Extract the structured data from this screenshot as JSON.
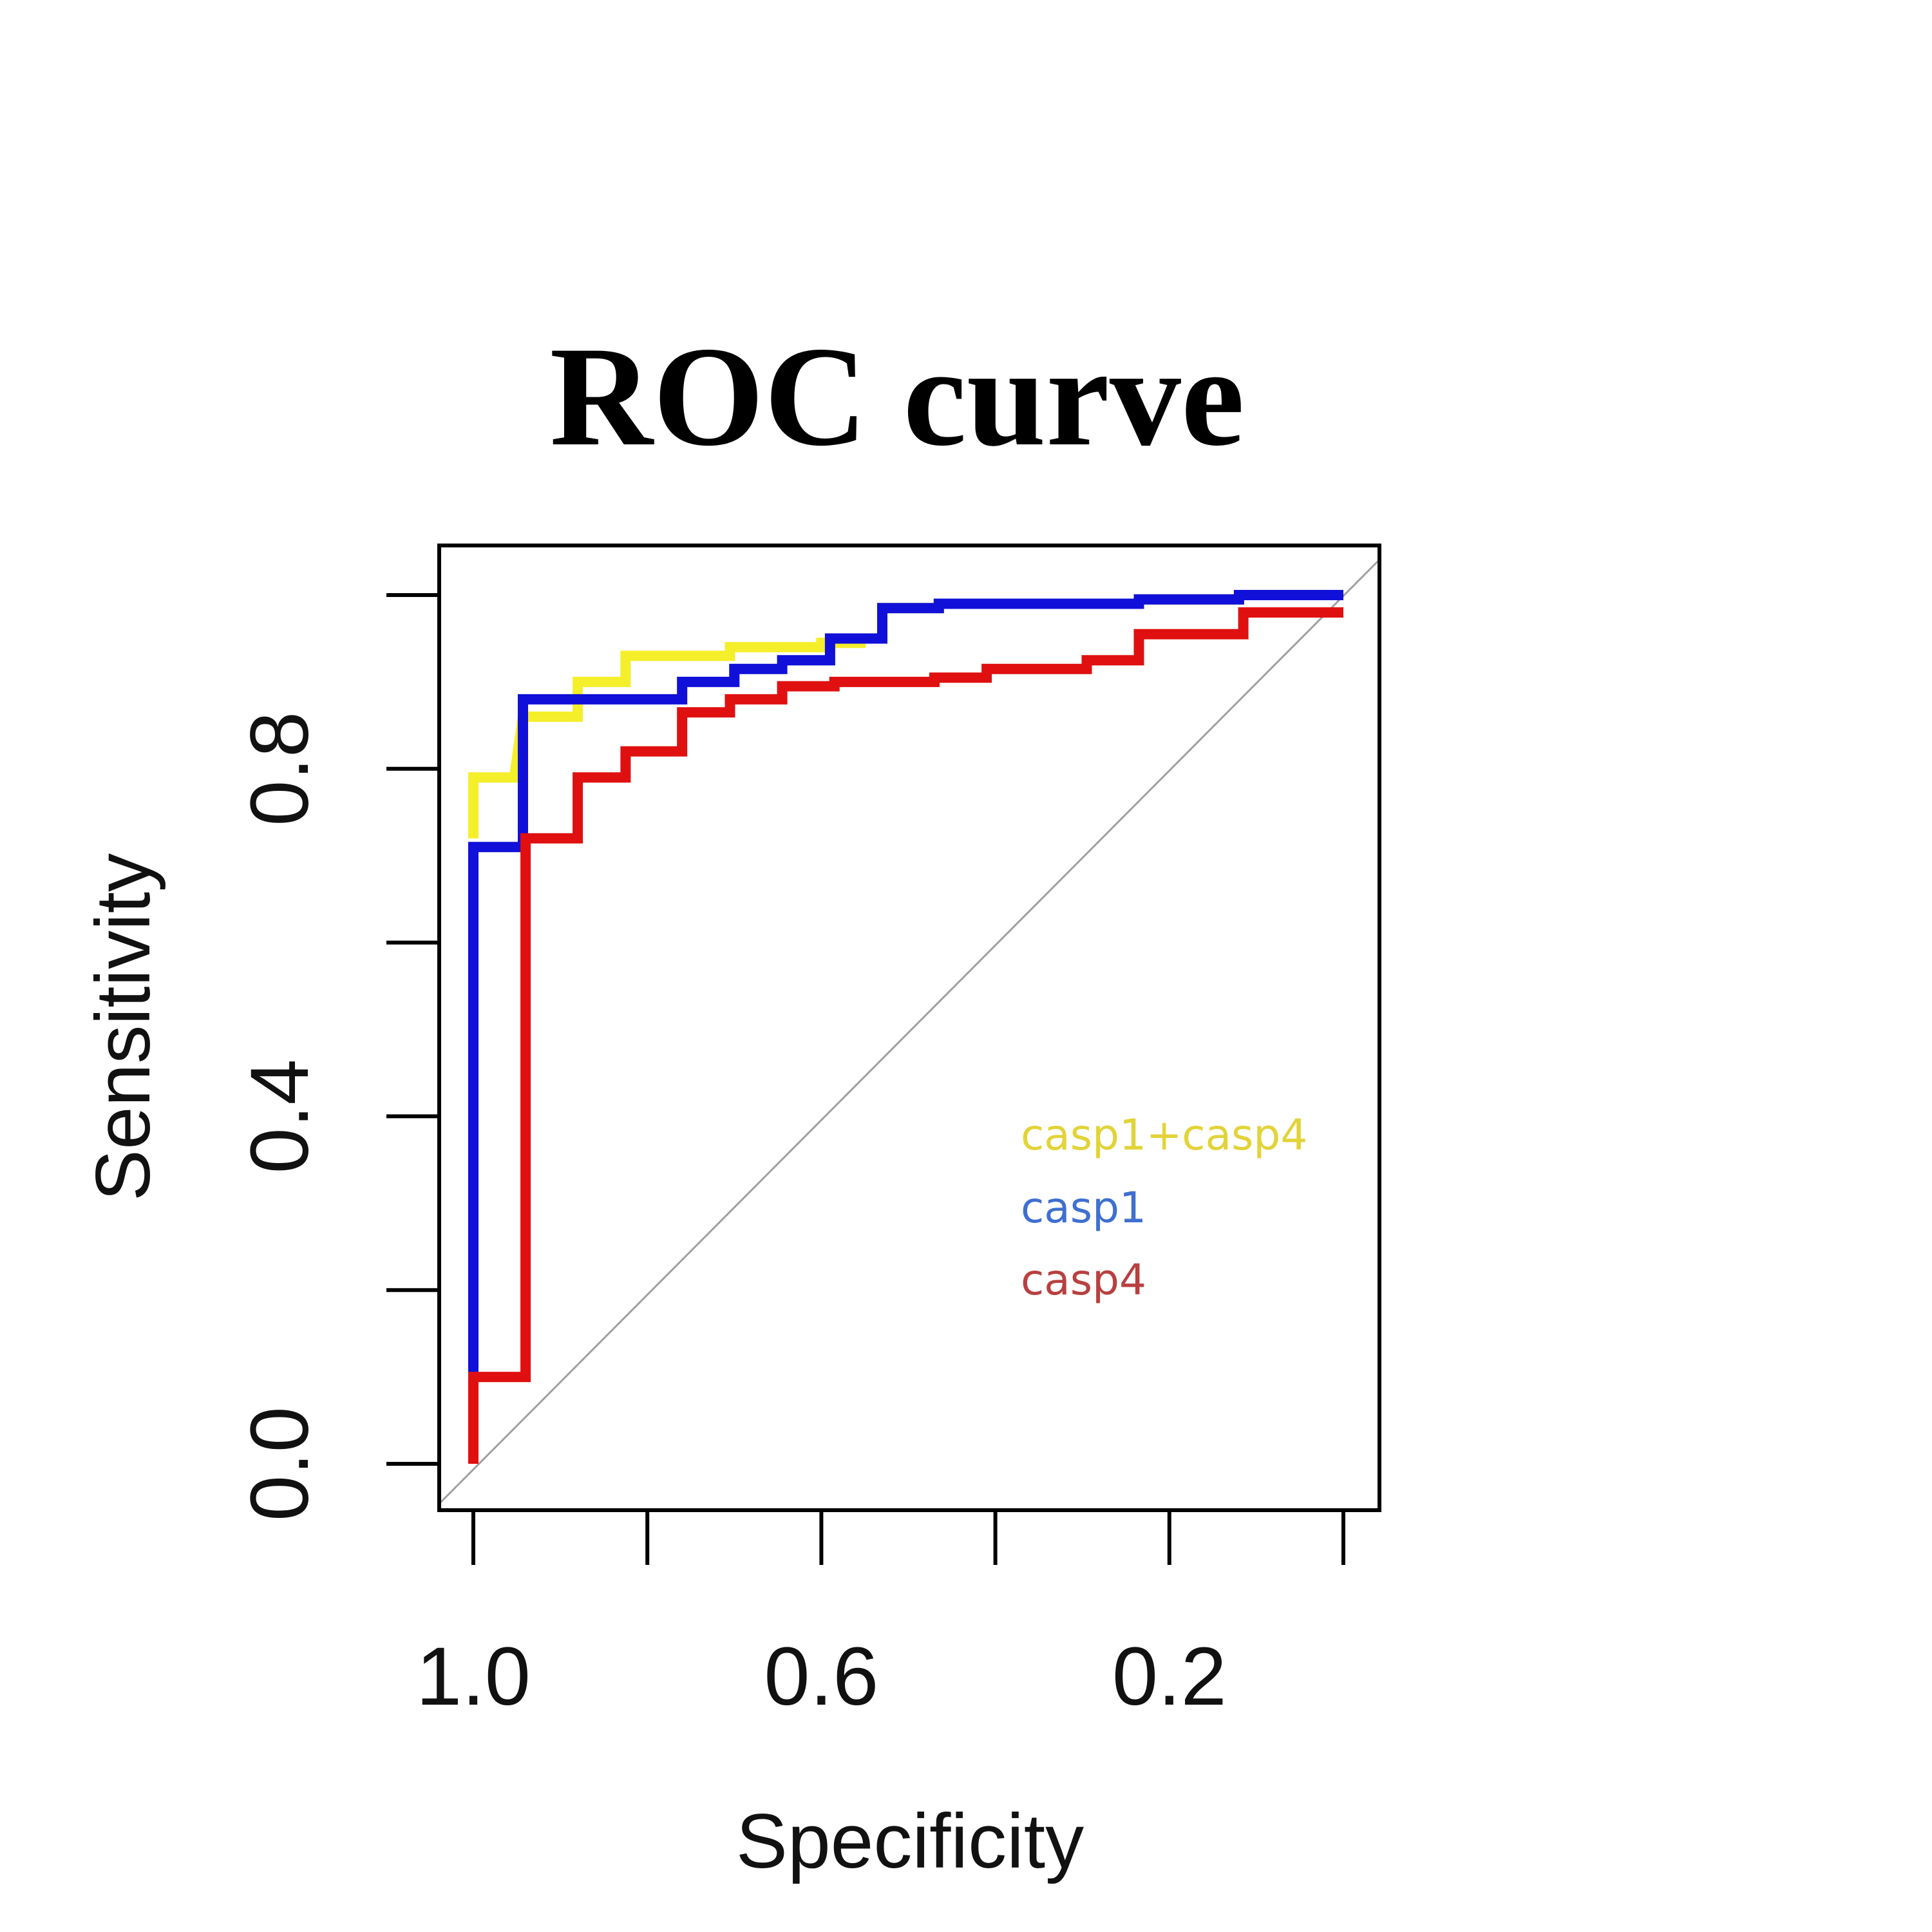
{
  "chart_data": {
    "type": "line",
    "subtype": "roc-step",
    "title": "ROC curve",
    "xlabel": "Specificity",
    "ylabel": "Sensitivity",
    "xlim": [
      1.0,
      0.0
    ],
    "ylim": [
      0.0,
      1.0
    ],
    "x_reversed": true,
    "x_ticks": [
      1.0,
      0.8,
      0.6,
      0.4,
      0.2,
      0.0
    ],
    "x_tick_labels": [
      "1.0",
      "",
      "0.6",
      "",
      "0.2",
      ""
    ],
    "y_ticks": [
      0.0,
      0.2,
      0.4,
      0.6,
      0.8,
      1.0
    ],
    "y_tick_labels": [
      "0.0",
      "",
      "0.4",
      "",
      "0.8",
      ""
    ],
    "grid": false,
    "legend_position": "bottom-right",
    "reference_line": {
      "from": [
        1.0,
        0.0
      ],
      "to": [
        0.0,
        1.0
      ],
      "color": "#a0a0a0"
    },
    "series": [
      {
        "name": "casp1+casp4",
        "color": "#f5ee2a",
        "legend_color": "#e2d338",
        "points": [
          [
            1.0,
            0.72
          ],
          [
            1.0,
            0.79
          ],
          [
            0.953,
            0.79
          ],
          [
            0.943,
            0.86
          ],
          [
            0.88,
            0.86
          ],
          [
            0.88,
            0.9
          ],
          [
            0.825,
            0.9
          ],
          [
            0.825,
            0.93
          ],
          [
            0.705,
            0.93
          ],
          [
            0.705,
            0.94
          ],
          [
            0.6,
            0.94
          ],
          [
            0.6,
            0.945
          ],
          [
            0.555,
            0.945
          ],
          [
            0.555,
            0.95
          ],
          [
            0.53,
            0.95
          ],
          [
            0.53,
            0.985
          ],
          [
            0.465,
            0.985
          ],
          [
            0.465,
            0.99
          ],
          [
            0.235,
            0.99
          ],
          [
            0.235,
            0.995
          ],
          [
            0.12,
            0.995
          ],
          [
            0.12,
            1.0
          ],
          [
            0.0,
            1.0
          ]
        ]
      },
      {
        "name": "casp1",
        "color": "#1010d8",
        "legend_color": "#3f6fd0",
        "points": [
          [
            1.0,
            0.1
          ],
          [
            1.0,
            0.71
          ],
          [
            0.943,
            0.71
          ],
          [
            0.943,
            0.88
          ],
          [
            0.76,
            0.88
          ],
          [
            0.76,
            0.9
          ],
          [
            0.7,
            0.9
          ],
          [
            0.7,
            0.915
          ],
          [
            0.645,
            0.915
          ],
          [
            0.645,
            0.925
          ],
          [
            0.59,
            0.925
          ],
          [
            0.59,
            0.95
          ],
          [
            0.53,
            0.95
          ],
          [
            0.53,
            0.985
          ],
          [
            0.465,
            0.985
          ],
          [
            0.465,
            0.99
          ],
          [
            0.235,
            0.99
          ],
          [
            0.235,
            0.995
          ],
          [
            0.12,
            0.995
          ],
          [
            0.12,
            1.0
          ],
          [
            0.0,
            1.0
          ]
        ]
      },
      {
        "name": "casp4",
        "color": "#e01010",
        "legend_color": "#b84040",
        "points": [
          [
            1.0,
            0.0
          ],
          [
            1.0,
            0.1
          ],
          [
            0.94,
            0.1
          ],
          [
            0.94,
            0.72
          ],
          [
            0.88,
            0.72
          ],
          [
            0.88,
            0.79
          ],
          [
            0.825,
            0.79
          ],
          [
            0.825,
            0.82
          ],
          [
            0.76,
            0.82
          ],
          [
            0.76,
            0.865
          ],
          [
            0.705,
            0.865
          ],
          [
            0.705,
            0.88
          ],
          [
            0.645,
            0.88
          ],
          [
            0.645,
            0.895
          ],
          [
            0.585,
            0.895
          ],
          [
            0.585,
            0.9
          ],
          [
            0.47,
            0.9
          ],
          [
            0.47,
            0.905
          ],
          [
            0.41,
            0.905
          ],
          [
            0.41,
            0.915
          ],
          [
            0.295,
            0.915
          ],
          [
            0.295,
            0.925
          ],
          [
            0.235,
            0.925
          ],
          [
            0.235,
            0.955
          ],
          [
            0.115,
            0.955
          ],
          [
            0.115,
            0.98
          ],
          [
            0.0,
            0.98
          ]
        ]
      }
    ]
  }
}
